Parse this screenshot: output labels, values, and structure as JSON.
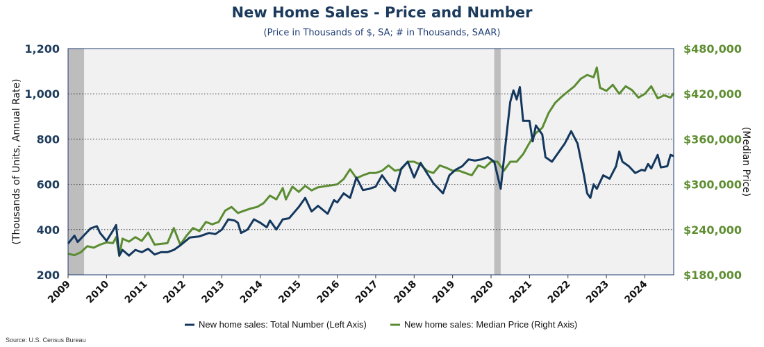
{
  "title": "New Home Sales - Price and Number",
  "subtitle": "(Price in Thousands of $, SA; # in Thousands, SAAR)",
  "source": "Source: U.S. Census Bureau",
  "colors": {
    "number": "#14375e",
    "price": "#5b8c32",
    "price_axis": "#5f8e32",
    "left_axis": "#1f3d5c",
    "plot_bg": "#f1f1f1",
    "recession": "#bdbdbd"
  },
  "chart_data": {
    "type": "line",
    "title": "New Home Sales - Price and Number",
    "subtitle": "(Price in Thousands of $, SA; # in Thousands, SAAR)",
    "ylabel": "(Thousands of Units, Annual Rate)",
    "y2label": "(Median Price)",
    "xlim": [
      "2009-01",
      "2024-10"
    ],
    "ylim": [
      200,
      1200
    ],
    "y2lim": [
      180000,
      480000
    ],
    "yticks": [
      "200",
      "400",
      "600",
      "800",
      "1,000",
      "1,200"
    ],
    "y2ticks": [
      "$180,000",
      "$240,000",
      "$300,000",
      "$360,000",
      "$420,000",
      "$480,000"
    ],
    "xticks": [
      "2009",
      "2010",
      "2011",
      "2012",
      "2013",
      "2014",
      "2015",
      "2016",
      "2017",
      "2018",
      "2019",
      "2020",
      "2021",
      "2022",
      "2023",
      "2024"
    ],
    "grid": "horizontal dotted",
    "legend_position": "bottom",
    "shaded_periods": [
      [
        "2009-01",
        "2009-06"
      ],
      [
        "2020-02",
        "2020-04"
      ]
    ],
    "series": [
      {
        "name": "New home sales: Total Number (Left Axis)",
        "axis": "left",
        "points": [
          [
            "2009-01",
            338
          ],
          [
            "2009-03",
            373
          ],
          [
            "2009-04",
            345
          ],
          [
            "2009-06",
            375
          ],
          [
            "2009-08",
            405
          ],
          [
            "2009-10",
            415
          ],
          [
            "2009-11",
            385
          ],
          [
            "2010-01",
            350
          ],
          [
            "2010-03",
            395
          ],
          [
            "2010-04",
            420
          ],
          [
            "2010-05",
            285
          ],
          [
            "2010-06",
            310
          ],
          [
            "2010-08",
            285
          ],
          [
            "2010-10",
            310
          ],
          [
            "2010-12",
            300
          ],
          [
            "2011-02",
            315
          ],
          [
            "2011-04",
            290
          ],
          [
            "2011-06",
            300
          ],
          [
            "2011-08",
            300
          ],
          [
            "2011-10",
            310
          ],
          [
            "2011-12",
            330
          ],
          [
            "2012-03",
            365
          ],
          [
            "2012-06",
            370
          ],
          [
            "2012-09",
            385
          ],
          [
            "2012-11",
            380
          ],
          [
            "2013-01",
            400
          ],
          [
            "2013-03",
            445
          ],
          [
            "2013-05",
            440
          ],
          [
            "2013-06",
            430
          ],
          [
            "2013-07",
            385
          ],
          [
            "2013-09",
            400
          ],
          [
            "2013-11",
            445
          ],
          [
            "2014-01",
            430
          ],
          [
            "2014-03",
            410
          ],
          [
            "2014-04",
            440
          ],
          [
            "2014-06",
            400
          ],
          [
            "2014-08",
            445
          ],
          [
            "2014-10",
            450
          ],
          [
            "2015-01",
            500
          ],
          [
            "2015-03",
            540
          ],
          [
            "2015-05",
            480
          ],
          [
            "2015-07",
            505
          ],
          [
            "2015-10",
            470
          ],
          [
            "2015-12",
            530
          ],
          [
            "2016-01",
            520
          ],
          [
            "2016-03",
            560
          ],
          [
            "2016-05",
            540
          ],
          [
            "2016-07",
            630
          ],
          [
            "2016-09",
            575
          ],
          [
            "2016-11",
            580
          ],
          [
            "2017-01",
            590
          ],
          [
            "2017-03",
            640
          ],
          [
            "2017-05",
            600
          ],
          [
            "2017-07",
            570
          ],
          [
            "2017-09",
            670
          ],
          [
            "2017-11",
            700
          ],
          [
            "2018-01",
            630
          ],
          [
            "2018-03",
            695
          ],
          [
            "2018-05",
            650
          ],
          [
            "2018-07",
            605
          ],
          [
            "2018-10",
            560
          ],
          [
            "2018-12",
            640
          ],
          [
            "2019-02",
            665
          ],
          [
            "2019-04",
            680
          ],
          [
            "2019-06",
            710
          ],
          [
            "2019-08",
            705
          ],
          [
            "2019-10",
            710
          ],
          [
            "2019-12",
            720
          ],
          [
            "2020-02",
            700
          ],
          [
            "2020-04",
            580
          ],
          [
            "2020-06",
            840
          ],
          [
            "2020-07",
            965
          ],
          [
            "2020-08",
            1015
          ],
          [
            "2020-09",
            975
          ],
          [
            "2020-10",
            1030
          ],
          [
            "2020-11",
            880
          ],
          [
            "2021-01",
            880
          ],
          [
            "2021-02",
            790
          ],
          [
            "2021-03",
            860
          ],
          [
            "2021-05",
            820
          ],
          [
            "2021-06",
            720
          ],
          [
            "2021-08",
            700
          ],
          [
            "2021-10",
            740
          ],
          [
            "2021-12",
            780
          ],
          [
            "2022-02",
            835
          ],
          [
            "2022-04",
            780
          ],
          [
            "2022-06",
            640
          ],
          [
            "2022-07",
            560
          ],
          [
            "2022-08",
            540
          ],
          [
            "2022-09",
            600
          ],
          [
            "2022-10",
            580
          ],
          [
            "2022-12",
            640
          ],
          [
            "2023-02",
            625
          ],
          [
            "2023-04",
            680
          ],
          [
            "2023-05",
            745
          ],
          [
            "2023-06",
            700
          ],
          [
            "2023-08",
            680
          ],
          [
            "2023-10",
            650
          ],
          [
            "2023-12",
            664
          ],
          [
            "2024-01",
            660
          ],
          [
            "2024-02",
            690
          ],
          [
            "2024-03",
            670
          ],
          [
            "2024-05",
            730
          ],
          [
            "2024-06",
            675
          ],
          [
            "2024-08",
            680
          ],
          [
            "2024-09",
            730
          ],
          [
            "2024-10",
            725
          ]
        ]
      },
      {
        "name": "New home sales: Median Price (Right Axis)",
        "axis": "right",
        "points": [
          [
            "2009-01",
            208000
          ],
          [
            "2009-03",
            206000
          ],
          [
            "2009-05",
            210000
          ],
          [
            "2009-07",
            218000
          ],
          [
            "2009-09",
            216000
          ],
          [
            "2009-11",
            220000
          ],
          [
            "2010-01",
            223000
          ],
          [
            "2010-03",
            222000
          ],
          [
            "2010-04",
            230000
          ],
          [
            "2010-05",
            205000
          ],
          [
            "2010-06",
            228000
          ],
          [
            "2010-08",
            224000
          ],
          [
            "2010-10",
            230000
          ],
          [
            "2010-12",
            225000
          ],
          [
            "2011-02",
            236000
          ],
          [
            "2011-04",
            220000
          ],
          [
            "2011-06",
            221000
          ],
          [
            "2011-08",
            222000
          ],
          [
            "2011-10",
            242000
          ],
          [
            "2011-12",
            220000
          ],
          [
            "2012-02",
            232000
          ],
          [
            "2012-04",
            242000
          ],
          [
            "2012-06",
            238000
          ],
          [
            "2012-08",
            250000
          ],
          [
            "2012-10",
            247000
          ],
          [
            "2012-12",
            250000
          ],
          [
            "2013-02",
            265000
          ],
          [
            "2013-04",
            270000
          ],
          [
            "2013-06",
            262000
          ],
          [
            "2013-08",
            265000
          ],
          [
            "2013-10",
            268000
          ],
          [
            "2013-12",
            270000
          ],
          [
            "2014-02",
            275000
          ],
          [
            "2014-04",
            285000
          ],
          [
            "2014-06",
            280000
          ],
          [
            "2014-08",
            295000
          ],
          [
            "2014-09",
            280000
          ],
          [
            "2014-11",
            297000
          ],
          [
            "2015-01",
            290000
          ],
          [
            "2015-03",
            298000
          ],
          [
            "2015-05",
            292000
          ],
          [
            "2015-07",
            296000
          ],
          [
            "2015-10",
            298000
          ],
          [
            "2016-01",
            300000
          ],
          [
            "2016-03",
            307000
          ],
          [
            "2016-05",
            320000
          ],
          [
            "2016-07",
            308000
          ],
          [
            "2016-09",
            312000
          ],
          [
            "2016-11",
            315000
          ],
          [
            "2017-01",
            315000
          ],
          [
            "2017-03",
            318000
          ],
          [
            "2017-05",
            325000
          ],
          [
            "2017-07",
            318000
          ],
          [
            "2017-09",
            320000
          ],
          [
            "2017-11",
            330000
          ],
          [
            "2018-01",
            330000
          ],
          [
            "2018-03",
            326000
          ],
          [
            "2018-05",
            318000
          ],
          [
            "2018-07",
            315000
          ],
          [
            "2018-09",
            325000
          ],
          [
            "2018-11",
            322000
          ],
          [
            "2019-01",
            318000
          ],
          [
            "2019-03",
            318000
          ],
          [
            "2019-05",
            315000
          ],
          [
            "2019-07",
            312000
          ],
          [
            "2019-09",
            325000
          ],
          [
            "2019-11",
            322000
          ],
          [
            "2020-01",
            330000
          ],
          [
            "2020-03",
            330000
          ],
          [
            "2020-05",
            318000
          ],
          [
            "2020-07",
            330000
          ],
          [
            "2020-09",
            330000
          ],
          [
            "2020-11",
            340000
          ],
          [
            "2021-01",
            355000
          ],
          [
            "2021-03",
            368000
          ],
          [
            "2021-05",
            375000
          ],
          [
            "2021-07",
            395000
          ],
          [
            "2021-09",
            408000
          ],
          [
            "2021-11",
            416000
          ],
          [
            "2022-01",
            423000
          ],
          [
            "2022-03",
            430000
          ],
          [
            "2022-05",
            440000
          ],
          [
            "2022-07",
            445000
          ],
          [
            "2022-09",
            442000
          ],
          [
            "2022-10",
            455000
          ],
          [
            "2022-11",
            428000
          ],
          [
            "2023-01",
            424000
          ],
          [
            "2023-03",
            432000
          ],
          [
            "2023-05",
            420000
          ],
          [
            "2023-07",
            430000
          ],
          [
            "2023-09",
            425000
          ],
          [
            "2023-11",
            415000
          ],
          [
            "2024-01",
            420000
          ],
          [
            "2024-03",
            430000
          ],
          [
            "2024-05",
            414000
          ],
          [
            "2024-07",
            418000
          ],
          [
            "2024-09",
            415000
          ],
          [
            "2024-10",
            421000
          ]
        ]
      }
    ]
  }
}
